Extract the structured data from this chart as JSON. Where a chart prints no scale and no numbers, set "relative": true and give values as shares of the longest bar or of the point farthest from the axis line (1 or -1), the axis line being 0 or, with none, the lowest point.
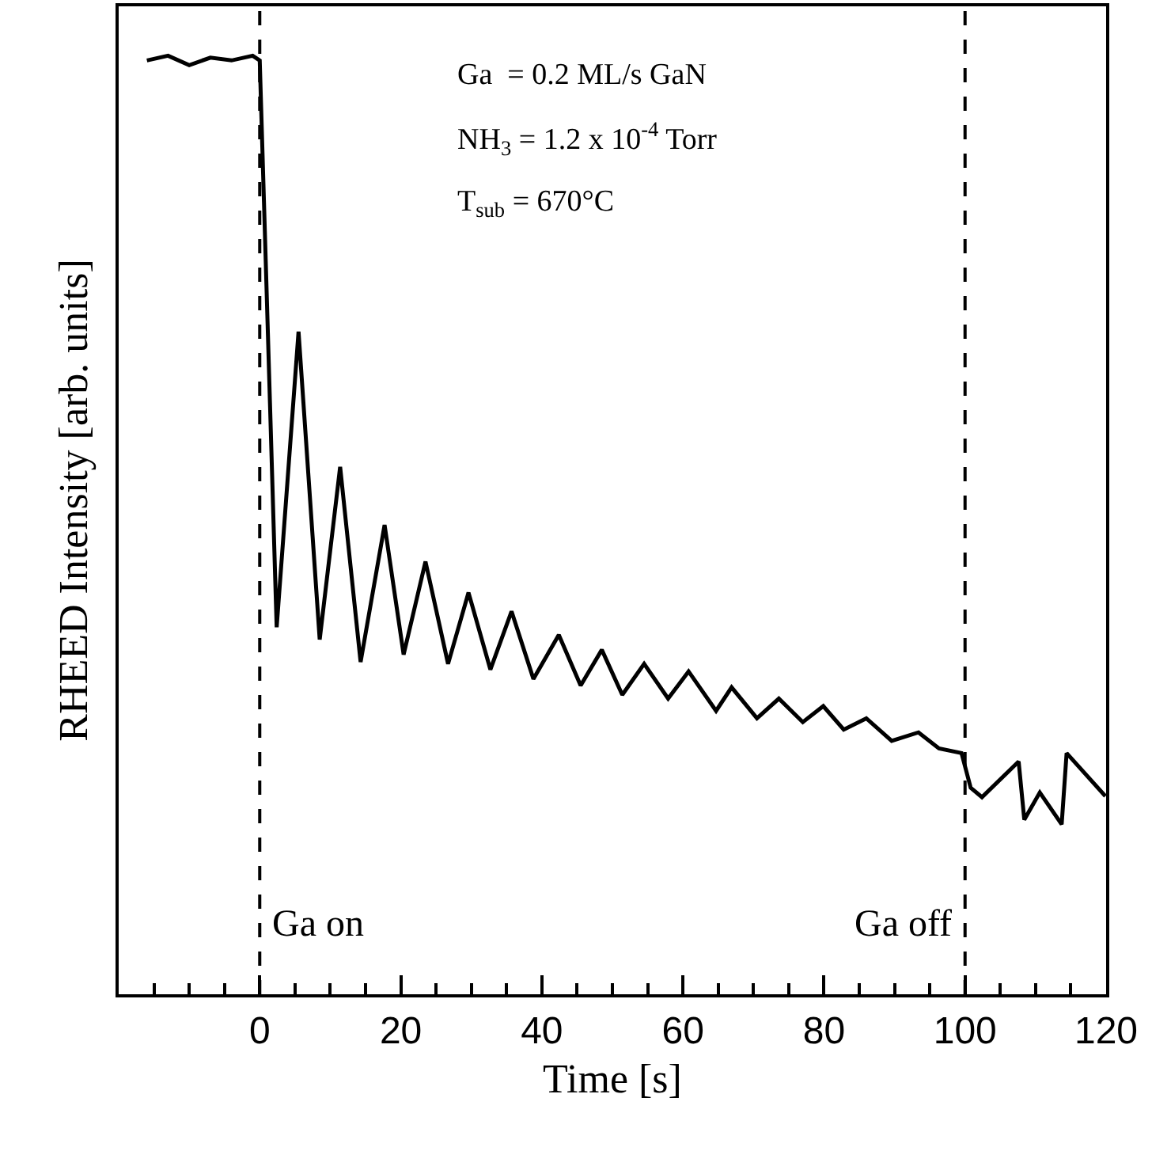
{
  "chart_data": {
    "type": "line",
    "relative": true,
    "xlabel": "Time [s]",
    "ylabel": "RHEED Intensity [arb. units]",
    "grid": false,
    "marker": "none",
    "line_style": "solid",
    "tick_labels": "x",
    "xlim": [
      -20,
      120
    ],
    "xticks": [
      {
        "value": -15,
        "label": null
      },
      {
        "value": -10,
        "label": null
      },
      {
        "value": -5,
        "label": null
      },
      0,
      {
        "value": 5,
        "label": null
      },
      {
        "value": 10,
        "label": null
      },
      {
        "value": 15,
        "label": null
      },
      20,
      {
        "value": 25,
        "label": null
      },
      {
        "value": 30,
        "label": null
      },
      {
        "value": 35,
        "label": null
      },
      40,
      {
        "value": 45,
        "label": null
      },
      {
        "value": 50,
        "label": null
      },
      {
        "value": 55,
        "label": null
      },
      60,
      {
        "value": 65,
        "label": null
      },
      {
        "value": 70,
        "label": null
      },
      {
        "value": 75,
        "label": null
      },
      80,
      {
        "value": 85,
        "label": null
      },
      {
        "value": 90,
        "label": null
      },
      {
        "value": 95,
        "label": null
      },
      100,
      {
        "value": 105,
        "label": null
      },
      {
        "value": 110,
        "label": null
      },
      {
        "value": 115,
        "label": null
      },
      120
    ],
    "x": [
      -16,
      -13,
      -10,
      -7,
      -4,
      -1,
      0,
      2.4,
      5.5,
      8.5,
      11.4,
      14.3,
      17.7,
      20.4,
      23.5,
      26.7,
      29.6,
      32.7,
      35.7,
      38.8,
      42.4,
      45.5,
      48.5,
      51.4,
      54.5,
      57.9,
      60.8,
      64.7,
      66.9,
      70.5,
      73.6,
      77,
      79.9,
      82.8,
      86,
      89.6,
      93.4,
      96.3,
      99.5,
      100.8,
      102.4,
      107.6,
      108.4,
      110.6,
      113.7,
      114.4,
      119.9
    ],
    "series": [
      {
        "color": "#000000",
        "values": [
          0.995,
          1.0,
          0.99,
          0.998,
          0.995,
          1.0,
          0.995,
          0.391,
          0.706,
          0.378,
          0.562,
          0.354,
          0.5,
          0.362,
          0.461,
          0.352,
          0.428,
          0.346,
          0.408,
          0.336,
          0.383,
          0.329,
          0.367,
          0.319,
          0.352,
          0.315,
          0.344,
          0.302,
          0.327,
          0.294,
          0.315,
          0.29,
          0.307,
          0.282,
          0.294,
          0.27,
          0.279,
          0.262,
          0.257,
          0.22,
          0.21,
          0.248,
          0.186,
          0.215,
          0.181,
          0.257,
          0.211
        ]
      }
    ],
    "ref_lines": [
      {
        "axis": "x",
        "value": 0,
        "label": "Ga on",
        "line_style": "dashed",
        "color": "#000000"
      },
      {
        "axis": "x",
        "value": 100,
        "label": "Ga off",
        "line_style": "dashed",
        "color": "#000000"
      }
    ],
    "annotations": [
      "Ga  = 0.2 ML/s GaN",
      "NH$_{3}$ = 1.2 x 10$^{-4}$ Torr",
      "T$_{sub}$ = 670°C"
    ]
  }
}
